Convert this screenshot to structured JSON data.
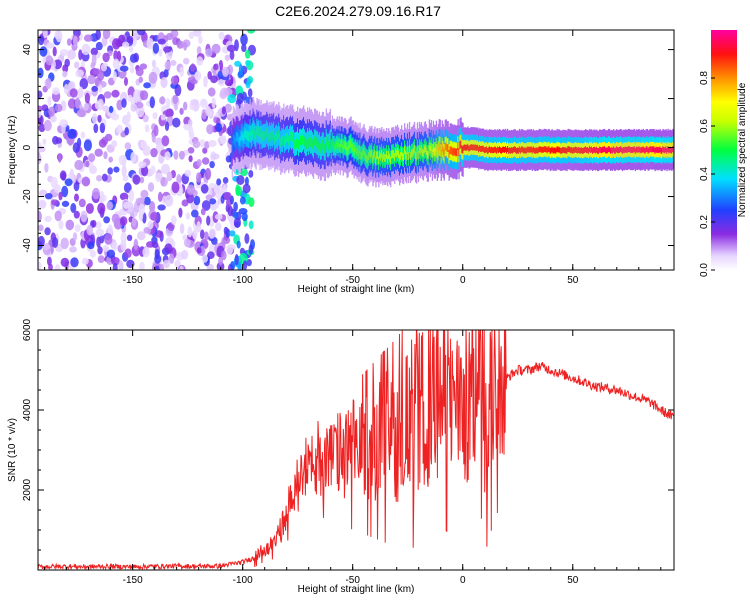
{
  "title": "C2E6.2024.279.09.16.R17",
  "colors": {
    "axis": "#000000",
    "snr_line": "#ee2222",
    "background": "#ffffff"
  },
  "chart_data": [
    {
      "type": "heatmap",
      "name": "spectrogram",
      "xlabel": "Height of straight line (km)",
      "ylabel": "Frequency (Hz)",
      "xlim": [
        -193,
        96
      ],
      "ylim": [
        -50,
        48
      ],
      "x_ticks": [
        -150,
        -100,
        -50,
        0,
        50
      ],
      "y_ticks": [
        -40,
        -20,
        0,
        20,
        40
      ],
      "grid": false,
      "colorbar": {
        "label": "Normalized spectral amplitude",
        "range": [
          0.0,
          1.0
        ],
        "ticks": [
          0.0,
          0.2,
          0.4,
          0.6,
          0.8
        ],
        "tick_labels": [
          "0.0",
          "0.2",
          "0.4",
          "0.6",
          "0.8"
        ],
        "colormap": "rainbow (white–violet–blue–cyan–green–yellow–orange–red–magenta)"
      },
      "regions": [
        {
          "x_range": [
            -193,
            -104
          ],
          "description": "broadband noise speckle",
          "amplitude": [
            0.05,
            0.25
          ]
        },
        {
          "x_range": [
            -105,
            -95
          ],
          "description": "signal onset",
          "amplitude": [
            0.2,
            0.5
          ]
        }
      ],
      "ridge": {
        "x": [
          -105,
          -100,
          -95,
          -90,
          -85,
          -80,
          -75,
          -70,
          -65,
          -60,
          -55,
          -50,
          -45,
          -40,
          -35,
          -30,
          -25,
          -20,
          -15,
          -10,
          -5,
          0,
          5,
          10,
          20,
          30,
          40,
          50,
          60,
          70,
          80,
          90,
          96
        ],
        "y": [
          2,
          5,
          6,
          5,
          4,
          3,
          3,
          2,
          1,
          1,
          0,
          0,
          -3,
          -4,
          -4,
          -3,
          -2,
          -2,
          -1,
          -1,
          -1,
          0,
          0,
          -1,
          -1,
          -1,
          -1,
          -1,
          -1,
          -1,
          -1,
          -1,
          -1
        ],
        "amplitude": [
          0.3,
          0.4,
          0.45,
          0.45,
          0.45,
          0.45,
          0.5,
          0.5,
          0.5,
          0.5,
          0.55,
          0.55,
          0.55,
          0.6,
          0.6,
          0.6,
          0.6,
          0.6,
          0.65,
          0.8,
          0.85,
          0.9,
          0.9,
          0.9,
          0.9,
          0.9,
          0.9,
          0.9,
          0.95,
          0.95,
          0.95,
          0.95,
          0.95
        ]
      }
    },
    {
      "type": "line",
      "name": "snr",
      "xlabel": "Height of straight line (km)",
      "ylabel": "SNR (10 * v/v)",
      "xlim": [
        -193,
        96
      ],
      "ylim": [
        0,
        6000
      ],
      "x_ticks": [
        -150,
        -100,
        -50,
        0,
        50
      ],
      "y_ticks": [
        2000,
        4000,
        6000
      ],
      "grid": false,
      "series": [
        {
          "x": [
            -193,
            -180,
            -170,
            -160,
            -150,
            -140,
            -130,
            -120,
            -110,
            -100,
            -95,
            -90,
            -85,
            -80,
            -76,
            -72,
            -70,
            -68,
            -65,
            -60,
            -55,
            -50,
            -45,
            -40,
            -35,
            -30,
            -25,
            -20,
            -15,
            -10,
            -5,
            0,
            5,
            8,
            10,
            15,
            20,
            25,
            30,
            35,
            40,
            45,
            50,
            55,
            60,
            65,
            70,
            75,
            80,
            85,
            90,
            96
          ],
          "y": [
            80,
            90,
            80,
            90,
            80,
            90,
            100,
            90,
            100,
            200,
            300,
            450,
            700,
            1300,
            2000,
            3000,
            2400,
            2600,
            2600,
            2700,
            2800,
            2900,
            3000,
            3100,
            3200,
            3300,
            3500,
            3700,
            3900,
            4200,
            4000,
            3800,
            4200,
            4700,
            3500,
            4500,
            4800,
            5000,
            5000,
            5100,
            5000,
            4900,
            4800,
            4700,
            4600,
            4550,
            4500,
            4400,
            4300,
            4200,
            4000,
            3800
          ]
        }
      ]
    }
  ]
}
